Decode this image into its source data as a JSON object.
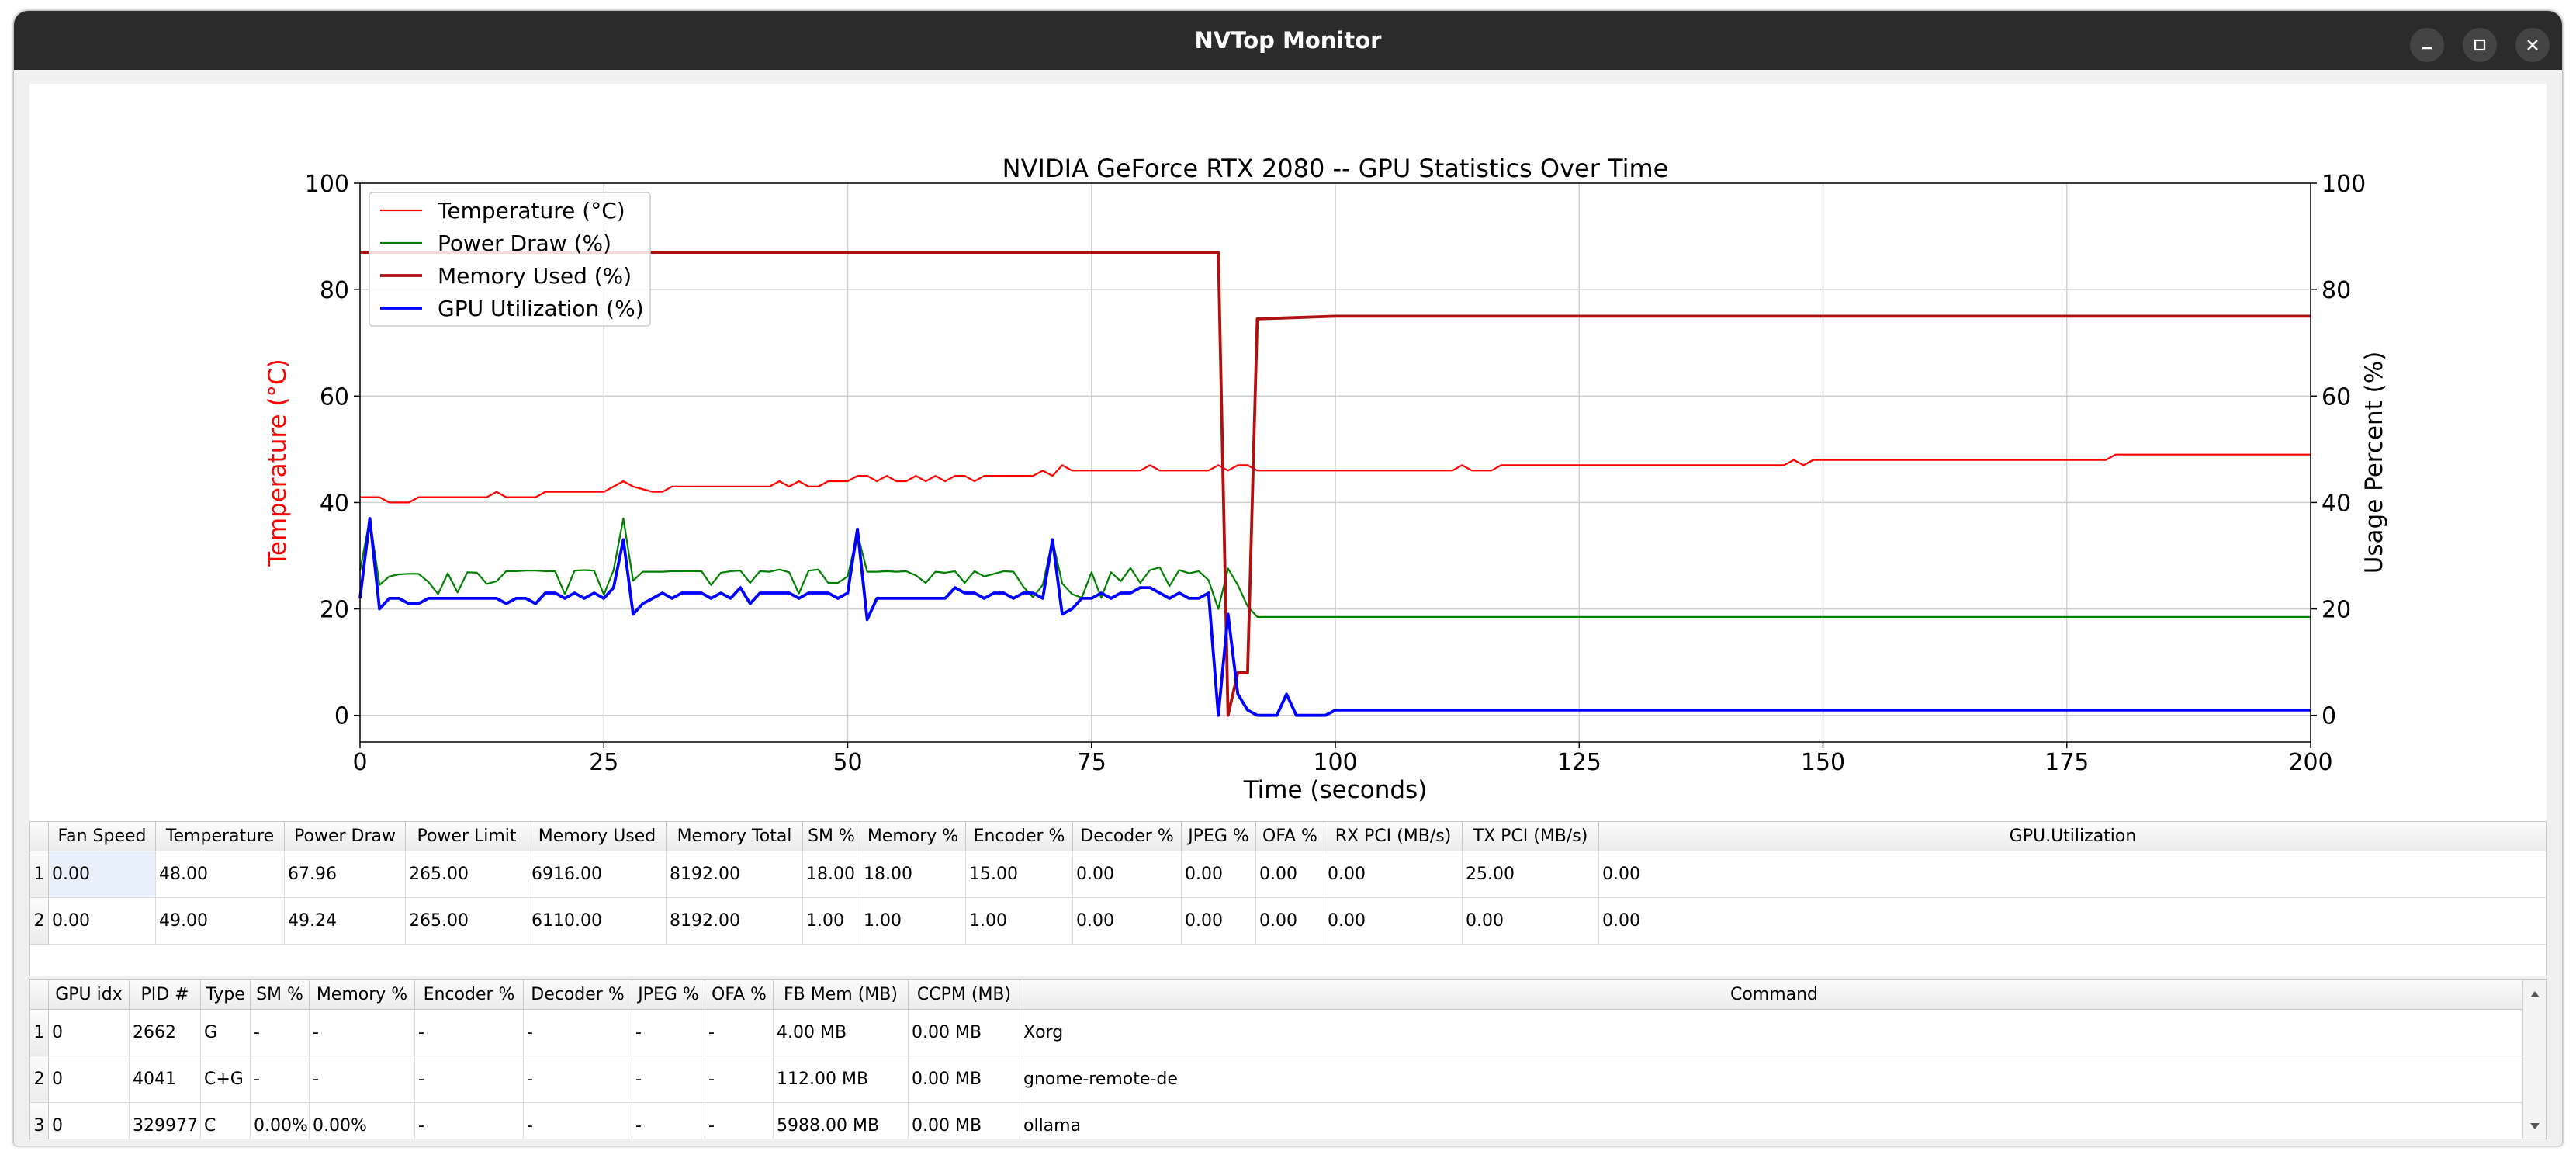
{
  "window": {
    "title": "NVTop Monitor"
  },
  "colors": {
    "temperature": "#ff0000",
    "power": "#008000",
    "memory": "#b01010",
    "gpu_util": "#0000ff",
    "titlebar": "#2b2b2b"
  },
  "icons": {
    "minimize": "minimize-icon",
    "maximize": "maximize-icon",
    "close": "close-icon"
  },
  "chart_data": {
    "type": "line",
    "title": "NVIDIA GeForce RTX 2080  --  GPU Statistics Over Time",
    "xlabel": "Time (seconds)",
    "ylabel_left": "Temperature (°C)",
    "ylabel_right": "Usage Percent (%)",
    "xlim": [
      0,
      200
    ],
    "ylim_left": [
      -5,
      100
    ],
    "ylim_right": [
      -5,
      100
    ],
    "x_ticks": [
      "0",
      "25",
      "50",
      "75",
      "100",
      "125",
      "150",
      "175",
      "200"
    ],
    "y_ticks_left": [
      "0",
      "20",
      "40",
      "60",
      "80",
      "100"
    ],
    "y_ticks_right": [
      "0",
      "20",
      "40",
      "60",
      "80",
      "100"
    ],
    "grid": true,
    "legend_position": "top-left",
    "series": [
      {
        "name": "Temperature (°C)",
        "axis": "left",
        "color": "#ff0000",
        "points": [
          [
            0,
            41
          ],
          [
            2,
            41
          ],
          [
            3,
            40
          ],
          [
            5,
            40
          ],
          [
            6,
            41
          ],
          [
            10,
            41
          ],
          [
            13,
            41
          ],
          [
            14,
            42
          ],
          [
            15,
            41
          ],
          [
            18,
            41
          ],
          [
            19,
            42
          ],
          [
            25,
            42
          ],
          [
            26,
            43
          ],
          [
            27,
            44
          ],
          [
            28,
            43
          ],
          [
            30,
            42
          ],
          [
            31,
            42
          ],
          [
            32,
            43
          ],
          [
            42,
            43
          ],
          [
            43,
            44
          ],
          [
            44,
            43
          ],
          [
            45,
            44
          ],
          [
            46,
            43
          ],
          [
            47,
            43
          ],
          [
            48,
            44
          ],
          [
            50,
            44
          ],
          [
            51,
            45
          ],
          [
            52,
            45
          ],
          [
            53,
            44
          ],
          [
            54,
            45
          ],
          [
            55,
            44
          ],
          [
            56,
            44
          ],
          [
            57,
            45
          ],
          [
            58,
            44
          ],
          [
            59,
            45
          ],
          [
            60,
            44
          ],
          [
            61,
            45
          ],
          [
            62,
            45
          ],
          [
            63,
            44
          ],
          [
            64,
            45
          ],
          [
            69,
            45
          ],
          [
            70,
            46
          ],
          [
            71,
            45
          ],
          [
            72,
            47
          ],
          [
            73,
            46
          ],
          [
            80,
            46
          ],
          [
            81,
            47
          ],
          [
            82,
            46
          ],
          [
            87,
            46
          ],
          [
            88,
            47
          ],
          [
            89,
            46
          ],
          [
            90,
            47
          ],
          [
            91,
            47
          ],
          [
            92,
            46
          ],
          [
            112,
            46
          ],
          [
            113,
            47
          ],
          [
            114,
            46
          ],
          [
            116,
            46
          ],
          [
            117,
            47
          ],
          [
            146,
            47
          ],
          [
            147,
            48
          ],
          [
            148,
            47
          ],
          [
            149,
            48
          ],
          [
            179,
            48
          ],
          [
            180,
            49
          ],
          [
            200,
            49
          ]
        ]
      },
      {
        "name": "Power Draw (%)",
        "axis": "right",
        "color": "#008000",
        "points": [
          [
            0,
            27.2
          ],
          [
            1,
            36.9
          ],
          [
            2,
            24.5
          ],
          [
            3,
            26.1
          ],
          [
            4,
            26.5
          ],
          [
            5,
            26.6
          ],
          [
            6,
            26.6
          ],
          [
            7,
            25.1
          ],
          [
            8,
            22.8
          ],
          [
            9,
            26.7
          ],
          [
            10,
            23.1
          ],
          [
            11,
            26.9
          ],
          [
            12,
            26.8
          ],
          [
            13,
            24.7
          ],
          [
            14,
            25.2
          ],
          [
            15,
            27.1
          ],
          [
            16,
            27.1
          ],
          [
            17,
            27.2
          ],
          [
            18,
            27.2
          ],
          [
            19,
            27.1
          ],
          [
            20,
            27.1
          ],
          [
            21,
            22.8
          ],
          [
            22,
            27.2
          ],
          [
            23,
            27.3
          ],
          [
            24,
            27.2
          ],
          [
            25,
            22.7
          ],
          [
            26,
            27.3
          ],
          [
            27,
            37.0
          ],
          [
            28,
            25.3
          ],
          [
            29,
            27.0
          ],
          [
            30,
            27.0
          ],
          [
            31,
            27.0
          ],
          [
            32,
            27.1
          ],
          [
            33,
            27.1
          ],
          [
            34,
            27.1
          ],
          [
            35,
            27.1
          ],
          [
            36,
            24.5
          ],
          [
            37,
            26.8
          ],
          [
            38,
            27.1
          ],
          [
            39,
            27.2
          ],
          [
            40,
            24.9
          ],
          [
            41,
            27.1
          ],
          [
            42,
            27.0
          ],
          [
            43,
            27.4
          ],
          [
            44,
            26.9
          ],
          [
            45,
            22.9
          ],
          [
            46,
            27.2
          ],
          [
            47,
            27.4
          ],
          [
            48,
            24.9
          ],
          [
            49,
            24.9
          ],
          [
            50,
            26.1
          ],
          [
            51,
            34.2
          ],
          [
            52,
            27.0
          ],
          [
            53,
            27.0
          ],
          [
            54,
            27.1
          ],
          [
            55,
            27.0
          ],
          [
            56,
            27.1
          ],
          [
            57,
            26.3
          ],
          [
            58,
            24.9
          ],
          [
            59,
            27.0
          ],
          [
            60,
            26.8
          ],
          [
            61,
            27.1
          ],
          [
            62,
            24.9
          ],
          [
            63,
            27.1
          ],
          [
            64,
            26.1
          ],
          [
            65,
            26.6
          ],
          [
            66,
            27.1
          ],
          [
            67,
            27.0
          ],
          [
            68,
            24.2
          ],
          [
            69,
            22.2
          ],
          [
            70,
            24.5
          ],
          [
            71,
            32.9
          ],
          [
            72,
            24.8
          ],
          [
            73,
            22.8
          ],
          [
            74,
            22.1
          ],
          [
            75,
            26.9
          ],
          [
            76,
            22.1
          ],
          [
            77,
            26.9
          ],
          [
            78,
            25.2
          ],
          [
            79,
            27.7
          ],
          [
            80,
            24.9
          ],
          [
            81,
            27.3
          ],
          [
            82,
            27.8
          ],
          [
            83,
            24.3
          ],
          [
            84,
            27.3
          ],
          [
            85,
            26.7
          ],
          [
            86,
            27.1
          ],
          [
            87,
            25.4
          ],
          [
            88,
            20.0
          ],
          [
            89,
            27.6
          ],
          [
            90,
            24.5
          ],
          [
            91,
            20.5
          ],
          [
            92,
            18.5
          ],
          [
            200,
            18.5
          ]
        ]
      },
      {
        "name": "Memory Used (%)",
        "axis": "right",
        "color": "#b01010",
        "points": [
          [
            0,
            87
          ],
          [
            88,
            87
          ],
          [
            89,
            0
          ],
          [
            90,
            8
          ],
          [
            91,
            8
          ],
          [
            92,
            74.5
          ],
          [
            100,
            75
          ],
          [
            200,
            75
          ]
        ]
      },
      {
        "name": "GPU Utilization (%)",
        "axis": "right",
        "color": "#0000ff",
        "points": [
          [
            0,
            22
          ],
          [
            1,
            37
          ],
          [
            2,
            20
          ],
          [
            3,
            22
          ],
          [
            4,
            22
          ],
          [
            5,
            21
          ],
          [
            6,
            21
          ],
          [
            7,
            22
          ],
          [
            13,
            22
          ],
          [
            14,
            22
          ],
          [
            15,
            21
          ],
          [
            16,
            22
          ],
          [
            17,
            22
          ],
          [
            18,
            21
          ],
          [
            19,
            23
          ],
          [
            20,
            23
          ],
          [
            21,
            22
          ],
          [
            22,
            23
          ],
          [
            23,
            22
          ],
          [
            24,
            23
          ],
          [
            25,
            22
          ],
          [
            26,
            24
          ],
          [
            27,
            33
          ],
          [
            28,
            19
          ],
          [
            29,
            21
          ],
          [
            30,
            22
          ],
          [
            31,
            23
          ],
          [
            32,
            22
          ],
          [
            33,
            23
          ],
          [
            34,
            23
          ],
          [
            35,
            23
          ],
          [
            36,
            22
          ],
          [
            37,
            23
          ],
          [
            38,
            22
          ],
          [
            39,
            24
          ],
          [
            40,
            21
          ],
          [
            41,
            23
          ],
          [
            42,
            23
          ],
          [
            43,
            23
          ],
          [
            44,
            23
          ],
          [
            45,
            22
          ],
          [
            46,
            23
          ],
          [
            47,
            23
          ],
          [
            48,
            23
          ],
          [
            49,
            22
          ],
          [
            50,
            23
          ],
          [
            51,
            35
          ],
          [
            52,
            18
          ],
          [
            53,
            22
          ],
          [
            54,
            22
          ],
          [
            55,
            22
          ],
          [
            56,
            22
          ],
          [
            57,
            22
          ],
          [
            58,
            22
          ],
          [
            59,
            22
          ],
          [
            60,
            22
          ],
          [
            61,
            24
          ],
          [
            62,
            23
          ],
          [
            63,
            23
          ],
          [
            64,
            22
          ],
          [
            65,
            23
          ],
          [
            66,
            23
          ],
          [
            67,
            22
          ],
          [
            68,
            23
          ],
          [
            69,
            23
          ],
          [
            70,
            22
          ],
          [
            71,
            33
          ],
          [
            72,
            19
          ],
          [
            73,
            20
          ],
          [
            74,
            22
          ],
          [
            75,
            22
          ],
          [
            76,
            23
          ],
          [
            77,
            22
          ],
          [
            78,
            23
          ],
          [
            79,
            23
          ],
          [
            80,
            24
          ],
          [
            81,
            24
          ],
          [
            82,
            23
          ],
          [
            83,
            22
          ],
          [
            84,
            23
          ],
          [
            85,
            22
          ],
          [
            86,
            22
          ],
          [
            87,
            23
          ],
          [
            88,
            0
          ],
          [
            89,
            19
          ],
          [
            90,
            4
          ],
          [
            91,
            1
          ],
          [
            92,
            0
          ],
          [
            94,
            0
          ],
          [
            95,
            4
          ],
          [
            96,
            0
          ],
          [
            99,
            0
          ],
          [
            100,
            1
          ],
          [
            200,
            1
          ]
        ]
      }
    ]
  },
  "gpu_table": {
    "columns": [
      "Fan Speed",
      "Temperature",
      "Power Draw",
      "Power Limit",
      "Memory Used",
      "Memory Total",
      "SM %",
      "Memory %",
      "Encoder %",
      "Decoder %",
      "JPEG %",
      "OFA %",
      "RX PCI (MB/s)",
      "TX PCI (MB/s)",
      "GPU.Utilization"
    ],
    "row_numbers": [
      "1",
      "2"
    ],
    "rows": [
      [
        "0.00",
        "48.00",
        "67.96",
        "265.00",
        "6916.00",
        "8192.00",
        "18.00",
        "18.00",
        "15.00",
        "0.00",
        "0.00",
        "0.00",
        "0.00",
        "25.00",
        "0.00"
      ],
      [
        "0.00",
        "49.00",
        "49.24",
        "265.00",
        "6110.00",
        "8192.00",
        "1.00",
        "1.00",
        "1.00",
        "0.00",
        "0.00",
        "0.00",
        "0.00",
        "0.00",
        "0.00"
      ]
    ]
  },
  "process_table": {
    "columns": [
      "GPU idx",
      "PID #",
      "Type",
      "SM %",
      "Memory %",
      "Encoder %",
      "Decoder %",
      "JPEG %",
      "OFA %",
      "FB Mem (MB)",
      "CCPM (MB)",
      "Command"
    ],
    "row_numbers": [
      "1",
      "2",
      "3"
    ],
    "rows": [
      [
        "0",
        "2662",
        "G",
        "-",
        "-",
        "-",
        "-",
        "-",
        "-",
        "4.00 MB",
        "0.00 MB",
        "Xorg"
      ],
      [
        "0",
        "4041",
        "C+G",
        "-",
        "-",
        "-",
        "-",
        "-",
        "-",
        "112.00 MB",
        "0.00 MB",
        "gnome-remote-de"
      ],
      [
        "0",
        "329977",
        "C",
        "0.00%",
        "0.00%",
        "-",
        "-",
        "-",
        "-",
        "5988.00 MB",
        "0.00 MB",
        "ollama"
      ]
    ]
  }
}
